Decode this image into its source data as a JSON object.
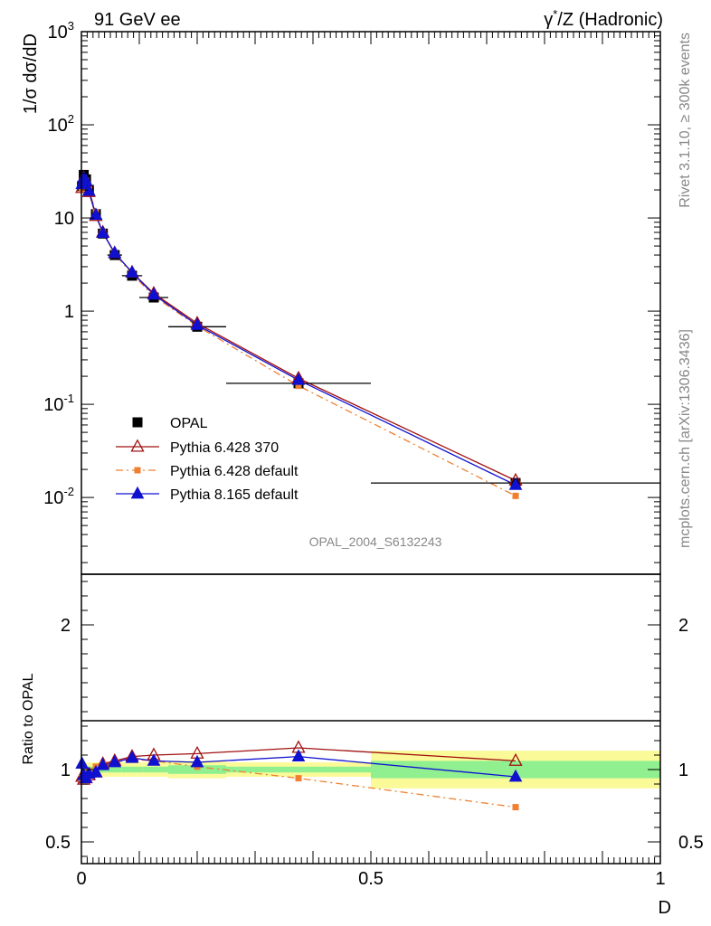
{
  "header": {
    "left": "91 GeV ee",
    "right_prefix": "γ",
    "right_sup": "*",
    "right_suffix": "/Z (Hadronic)"
  },
  "side_labels": {
    "top": "Rivet 3.1.10, ≥ 300k events",
    "bottom": "mcplots.cern.ch [arXiv:1306.3436]"
  },
  "watermark": "OPAL_2004_S6132243",
  "chart_data": [
    {
      "type": "scatter",
      "panel": "main",
      "yscale": "log",
      "ylabel": "1/σ dσ/dD",
      "xlabel": "D",
      "xlim": [
        0,
        1
      ],
      "ylim": [
        0.0015,
        1000
      ],
      "y_tick_labels": [
        {
          "mant": "10",
          "exp": "-2",
          "v": 0.01
        },
        {
          "mant": "10",
          "exp": "-1",
          "v": 0.1
        },
        {
          "mant": "1",
          "exp": "",
          "v": 1
        },
        {
          "mant": "10",
          "exp": "",
          "v": 10
        },
        {
          "mant": "10",
          "exp": "2",
          "v": 100
        },
        {
          "mant": "10",
          "exp": "3",
          "v": 1000
        }
      ],
      "legend_position": "middle-left",
      "series": [
        {
          "name": "OPAL",
          "marker": "square",
          "color": "#000000",
          "x": [
            0.001,
            0.004,
            0.008,
            0.013,
            0.025,
            0.037,
            0.0575,
            0.0875,
            0.125,
            0.2,
            0.375,
            0.75
          ],
          "y": [
            22,
            29,
            26,
            20,
            11,
            6.8,
            4.0,
            2.4,
            1.4,
            0.68,
            0.168,
            0.0143
          ],
          "xerr": [
            0.001,
            0.001,
            0.002,
            0.005,
            0.005,
            0.008,
            0.0125,
            0.0175,
            0.025,
            0.05,
            0.125,
            0.25
          ]
        },
        {
          "name": "Pythia 6.428 370",
          "marker": "triangle-open",
          "line": "solid",
          "color": "#a01010",
          "x": [
            0.001,
            0.004,
            0.008,
            0.013,
            0.025,
            0.037,
            0.0575,
            0.0875,
            0.125,
            0.2,
            0.375,
            0.75
          ],
          "y": [
            21,
            27,
            24,
            19,
            10.5,
            7.0,
            4.2,
            2.6,
            1.55,
            0.74,
            0.19,
            0.0152
          ]
        },
        {
          "name": "Pythia 6.428 default",
          "marker": "square-small",
          "line": "dashdot",
          "color": "#f08030",
          "x": [
            0.001,
            0.004,
            0.008,
            0.013,
            0.025,
            0.037,
            0.0575,
            0.0875,
            0.125,
            0.2,
            0.375,
            0.75
          ],
          "y": [
            20.5,
            27,
            25,
            20,
            11.5,
            7.0,
            4.1,
            2.5,
            1.45,
            0.69,
            0.158,
            0.0104
          ]
        },
        {
          "name": "Pythia 8.165 default",
          "marker": "triangle-filled",
          "line": "solid",
          "color": "#1010d0",
          "x": [
            0.001,
            0.004,
            0.008,
            0.013,
            0.025,
            0.037,
            0.0575,
            0.0875,
            0.125,
            0.2,
            0.375,
            0.75
          ],
          "y": [
            23,
            27,
            25,
            19.5,
            10.8,
            6.9,
            4.2,
            2.6,
            1.5,
            0.71,
            0.182,
            0.0136
          ]
        }
      ]
    },
    {
      "type": "line",
      "panel": "ratio",
      "ylabel": "Ratio to OPAL",
      "xlabel": "D",
      "xlim": [
        0,
        1
      ],
      "ylim": [
        0.35,
        2.35
      ],
      "x_tick_labels": [
        {
          "t": "0",
          "v": 0
        },
        {
          "t": "0.5",
          "v": 0.5
        },
        {
          "t": "1",
          "v": 1
        }
      ],
      "y_tick_labels": [
        {
          "t": "0.5",
          "v": 0.5
        },
        {
          "t": "1",
          "v": 1
        },
        {
          "t": "2",
          "v": 2
        }
      ],
      "bands": [
        {
          "x0": 0.0,
          "x1": 0.002,
          "stat": 0.03,
          "total": 0.07
        },
        {
          "x0": 0.002,
          "x1": 0.006,
          "stat": 0.03,
          "total": 0.06
        },
        {
          "x0": 0.006,
          "x1": 0.01,
          "stat": 0.02,
          "total": 0.05
        },
        {
          "x0": 0.01,
          "x1": 0.02,
          "stat": 0.02,
          "total": 0.05
        },
        {
          "x0": 0.02,
          "x1": 0.03,
          "stat": 0.02,
          "total": 0.05
        },
        {
          "x0": 0.03,
          "x1": 0.045,
          "stat": 0.02,
          "total": 0.05
        },
        {
          "x0": 0.045,
          "x1": 0.07,
          "stat": 0.02,
          "total": 0.05
        },
        {
          "x0": 0.07,
          "x1": 0.105,
          "stat": 0.02,
          "total": 0.05
        },
        {
          "x0": 0.105,
          "x1": 0.15,
          "stat": 0.02,
          "total": 0.05
        },
        {
          "x0": 0.15,
          "x1": 0.25,
          "stat": 0.03,
          "total": 0.06
        },
        {
          "x0": 0.25,
          "x1": 0.5,
          "stat": 0.02,
          "total": 0.05
        },
        {
          "x0": 0.5,
          "x1": 1.0,
          "stat": 0.06,
          "total": 0.13
        }
      ],
      "series": [
        {
          "name": "Pythia 6.428 370",
          "color": "#a01010",
          "x": [
            0.001,
            0.004,
            0.008,
            0.013,
            0.025,
            0.037,
            0.0575,
            0.0875,
            0.125,
            0.2,
            0.375,
            0.75
          ],
          "y": [
            0.95,
            0.93,
            0.94,
            0.96,
            0.98,
            1.04,
            1.06,
            1.09,
            1.1,
            1.11,
            1.15,
            1.06
          ]
        },
        {
          "name": "Pythia 6.428 default",
          "color": "#f08030",
          "x": [
            0.001,
            0.004,
            0.008,
            0.013,
            0.025,
            0.037,
            0.0575,
            0.0875,
            0.125,
            0.2,
            0.375,
            0.75
          ],
          "y": [
            0.94,
            0.95,
            0.97,
            0.99,
            1.02,
            1.04,
            1.05,
            1.07,
            1.06,
            1.02,
            0.94,
            0.74
          ]
        },
        {
          "name": "Pythia 8.165 default",
          "color": "#1010d0",
          "x": [
            0.001,
            0.004,
            0.008,
            0.013,
            0.025,
            0.037,
            0.0575,
            0.0875,
            0.125,
            0.2,
            0.375,
            0.75
          ],
          "y": [
            1.04,
            0.96,
            0.94,
            0.97,
            0.98,
            1.03,
            1.05,
            1.08,
            1.06,
            1.05,
            1.09,
            0.95
          ]
        }
      ]
    }
  ],
  "colors": {
    "band_stat": "#90f090",
    "band_total": "#fafa98"
  }
}
